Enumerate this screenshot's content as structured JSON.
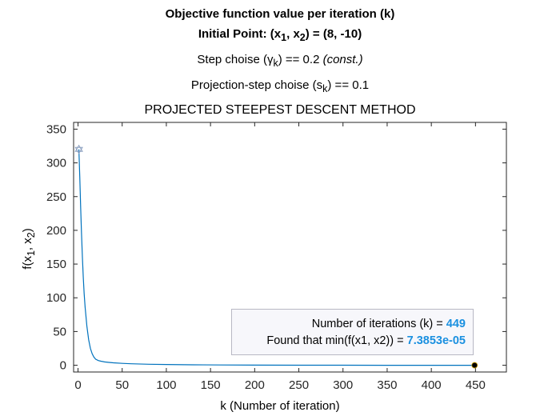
{
  "chart_data": {
    "type": "line",
    "title_lines": {
      "line1": "Objective function value per iteration (k)",
      "line2": {
        "prefix": "Initial Point: (x",
        "s1": "1",
        "mid": ", x",
        "s2": "2",
        "suffix": ") = (8, -10)"
      },
      "line3": {
        "prefix": "Step choise (",
        "greek": "γ",
        "sub": "k",
        "suffix": ") == 0.2  ",
        "note": "(const.)"
      },
      "line4": {
        "prefix": "Projection-step choise (s",
        "sub": "k",
        "suffix": ") == 0.1"
      },
      "line5": "PROJECTED STEEPEST DESCENT METHOD"
    },
    "xlabel": "k (Number of iteration)",
    "ylabel": {
      "prefix": "f(x",
      "s1": "1",
      "mid": ", x",
      "s2": "2",
      "suffix": ")"
    },
    "xlim": [
      -5,
      485
    ],
    "ylim": [
      -10,
      360
    ],
    "xticks": [
      0,
      50,
      100,
      150,
      200,
      250,
      300,
      350,
      400,
      450
    ],
    "yticks": [
      0,
      50,
      100,
      150,
      200,
      250,
      300,
      350
    ],
    "grid": false,
    "series": [
      {
        "color": "#0072bd",
        "x": [
          1,
          2,
          3,
          4,
          5,
          6,
          7,
          8,
          10,
          12,
          14,
          16,
          18,
          20,
          23,
          26,
          30,
          35,
          40,
          50,
          60,
          80,
          100,
          130,
          160,
          200,
          250,
          300,
          350,
          400,
          449
        ],
        "y": [
          320,
          280,
          235,
          195,
          160,
          130,
          106,
          86,
          58,
          38,
          25,
          17,
          12,
          9,
          7,
          6,
          5,
          4.2,
          3.6,
          2.8,
          2.2,
          1.5,
          1.1,
          0.7,
          0.45,
          0.25,
          0.12,
          0.05,
          0.02,
          0.005,
          7.38e-05
        ]
      }
    ],
    "start_marker": {
      "x": 1,
      "y": 320,
      "shape": "hexagram",
      "color": "#8ca0c0"
    },
    "end_marker": {
      "x": 449,
      "y": 7.38e-05,
      "shape": "circle",
      "color": "#000000"
    },
    "annotation": {
      "line1_label": "Number of iterations (k) = ",
      "line1_value": "449",
      "line2_label": "Found that min(f(x1, x2)) = ",
      "line2_value": "7.3853e-05",
      "value_color": "#1a90e0"
    }
  }
}
